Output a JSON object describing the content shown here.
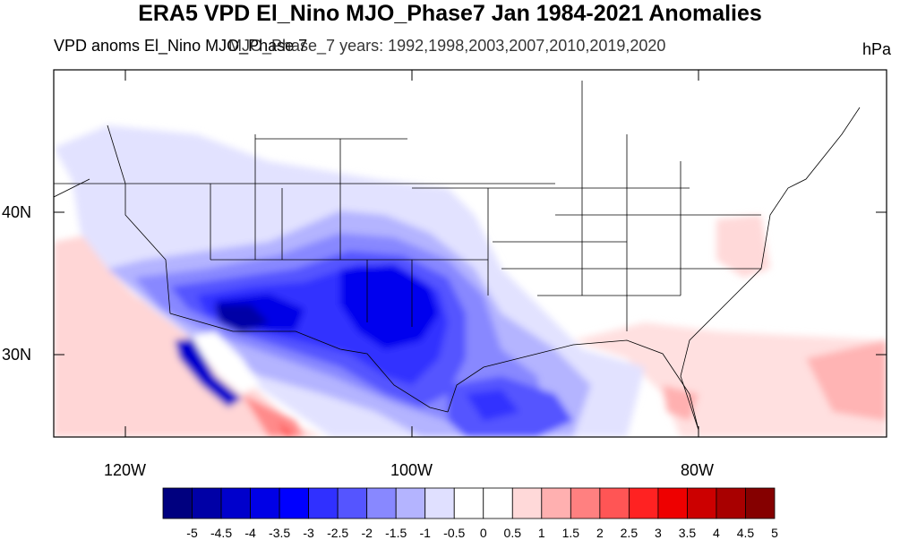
{
  "title": "ERA5 VPD El_Nino MJO_Phase7 Jan 1984-2021 Anomalies",
  "subtitle_left": "VPD anoms El_Nino MJO_Phase 7",
  "subtitle_overlay": "MJO_Phase_7",
  "subtitle_years": "years: 1992,1998,2003,2007,2010,2019,2020",
  "units": "hPa",
  "lat_labels": [
    "40N",
    "30N"
  ],
  "lon_labels": [
    "120W",
    "100W",
    "80W"
  ],
  "colorbar": {
    "labels": [
      "-5",
      "-4.5",
      "-4",
      "-3.5",
      "-3",
      "-2.5",
      "-2",
      "-1.5",
      "-1",
      "-0.5",
      "0",
      "0.5",
      "1",
      "1.5",
      "2",
      "2.5",
      "3",
      "3.5",
      "4",
      "4.5",
      "5"
    ],
    "colors": [
      "#00007f",
      "#0000a6",
      "#0000cc",
      "#0000e6",
      "#0000ff",
      "#3030ff",
      "#5555ff",
      "#8888ff",
      "#b4b4ff",
      "#e0e0ff",
      "#ffffff",
      "#ffffff",
      "#ffd9d9",
      "#ffb0b0",
      "#ff8080",
      "#ff5555",
      "#ff2222",
      "#ee0000",
      "#cc0000",
      "#a80000",
      "#850000"
    ]
  }
}
